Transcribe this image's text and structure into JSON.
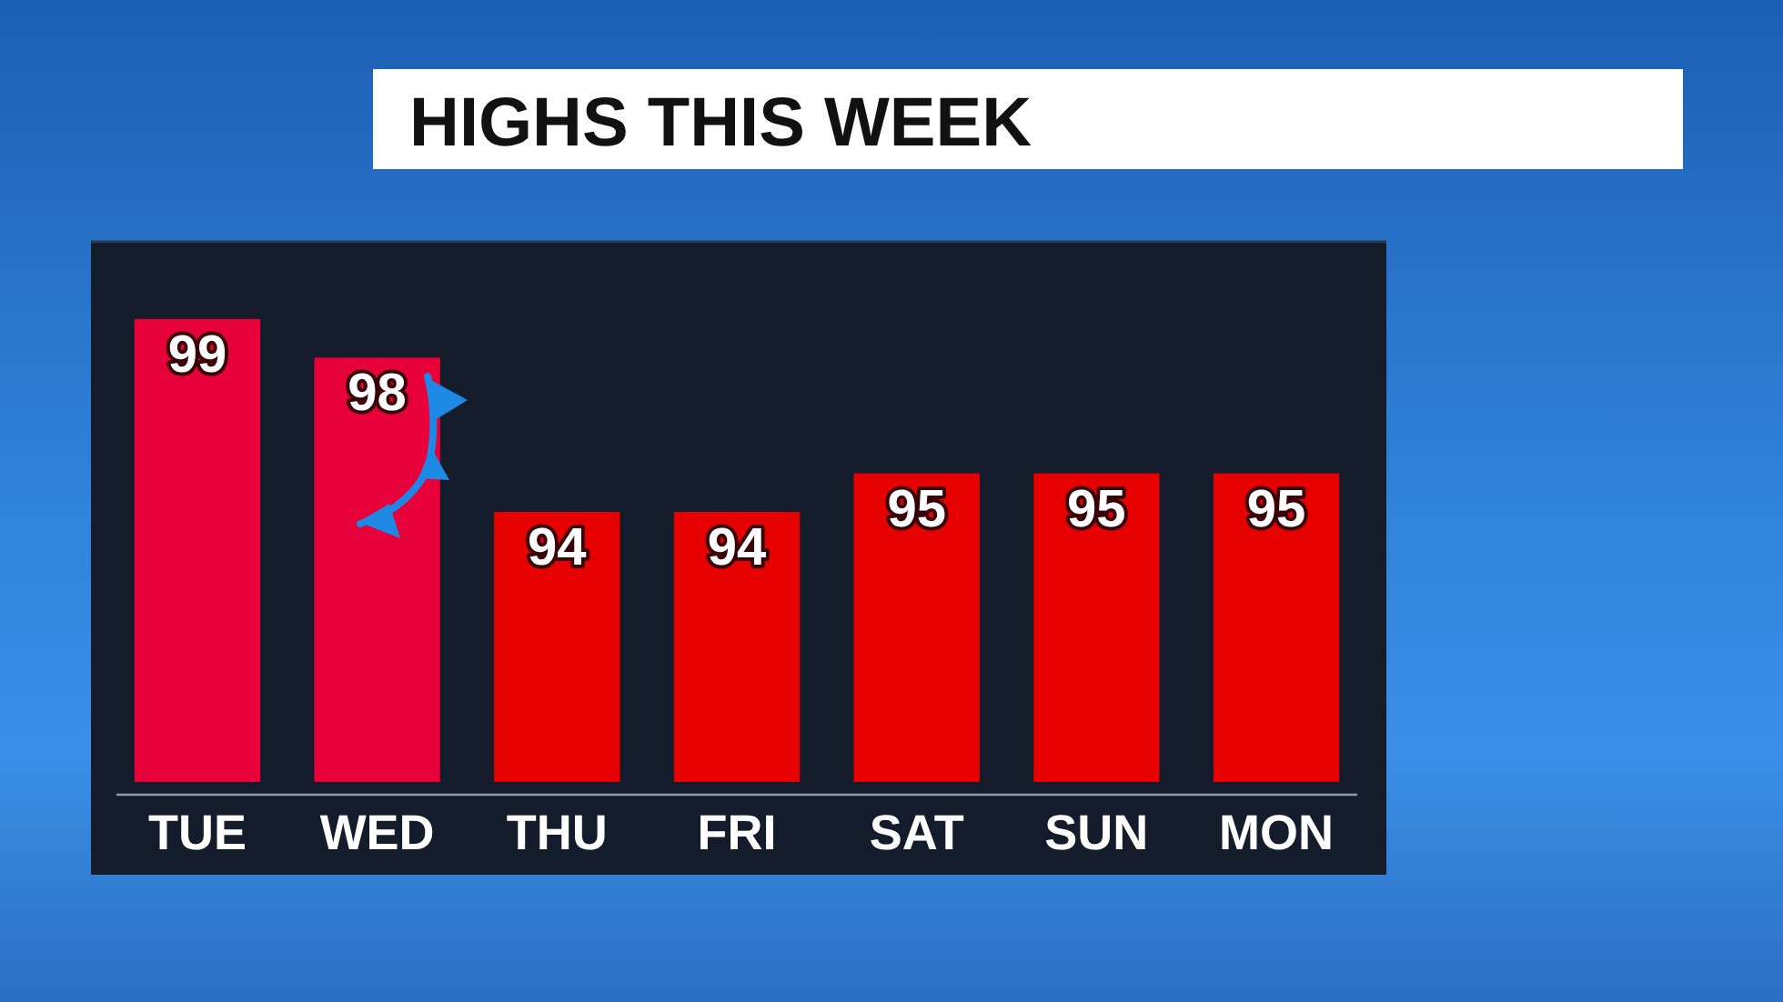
{
  "chart_data": {
    "type": "bar",
    "title": "HIGHS THIS WEEK",
    "categories": [
      "TUE",
      "WED",
      "THU",
      "FRI",
      "SAT",
      "SUN",
      "MON"
    ],
    "values": [
      99,
      98,
      94,
      94,
      95,
      95,
      95
    ],
    "colors": [
      "#e8003a",
      "#e8003a",
      "#e60000",
      "#e60000",
      "#e60000",
      "#e60000",
      "#e60000"
    ],
    "ylim": [
      87,
      101
    ],
    "tick_labels": "x",
    "data_labels": true
  }
}
